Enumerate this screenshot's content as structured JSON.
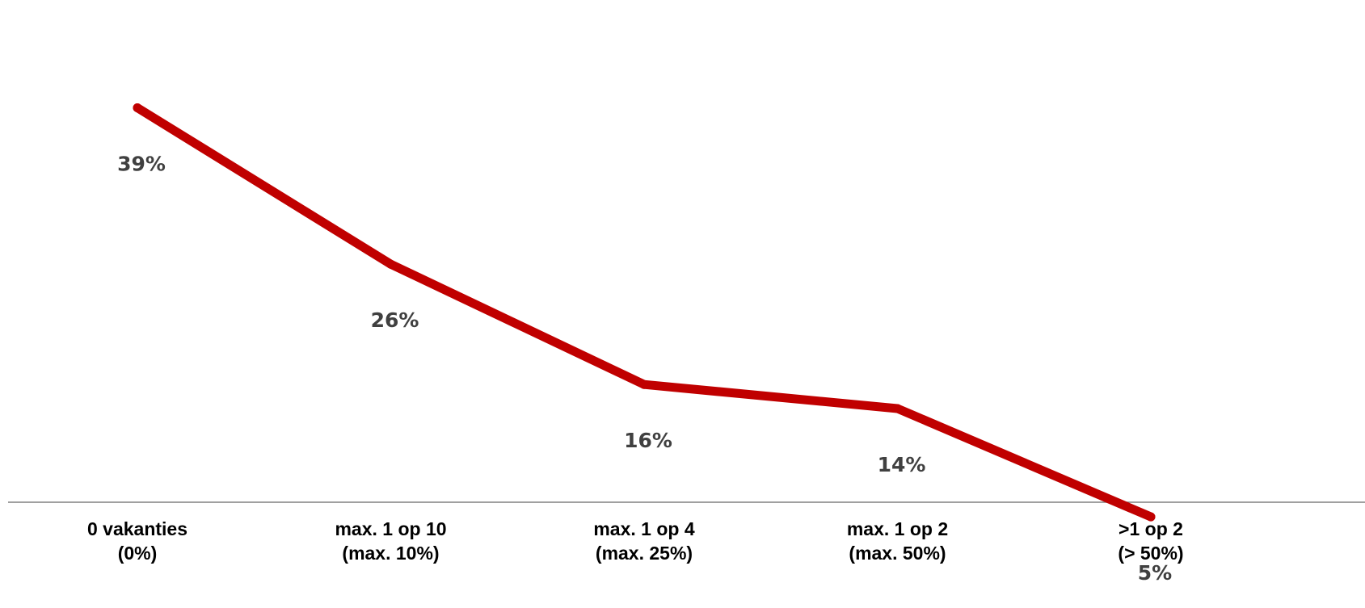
{
  "chart_data": {
    "type": "line",
    "categories": [
      [
        "0 vakanties",
        "(0%)"
      ],
      [
        "max. 1 op 10",
        "(max. 10%)"
      ],
      [
        "max. 1 op 4",
        "(max. 25%)"
      ],
      [
        "max. 1 op 2",
        "(max. 50%)"
      ],
      [
        ">1 op 2",
        "(> 50%)"
      ]
    ],
    "series": [
      {
        "values": [
          39,
          26,
          16,
          14,
          5
        ],
        "labels": [
          "39%",
          "26%",
          "16%",
          "14%",
          "5%"
        ],
        "color": "#c00000"
      }
    ],
    "ylim": [
      0,
      40
    ],
    "grid": false,
    "legend": "none",
    "colors": {
      "line": "#c00000",
      "data_label": "#404040",
      "axis": "#808080",
      "tick_label": "#000000"
    }
  }
}
